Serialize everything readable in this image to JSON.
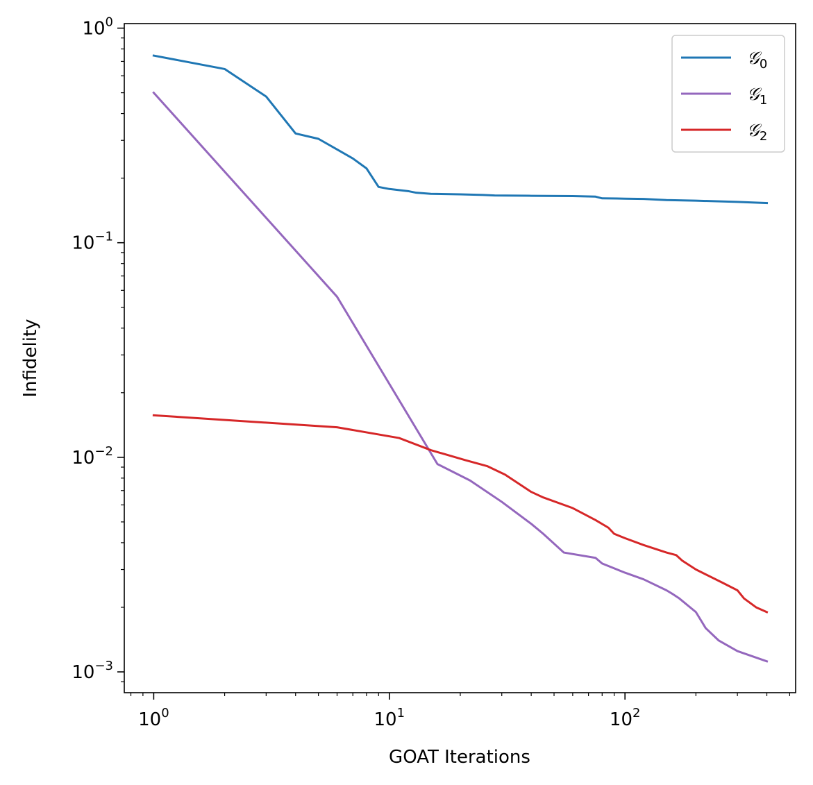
{
  "chart_data": {
    "type": "line",
    "title": "",
    "xlabel": "GOAT Iterations",
    "ylabel": "Infidelity",
    "xscale": "log",
    "yscale": "log",
    "xlim": [
      0.75,
      530
    ],
    "ylim": [
      0.0008,
      1.05
    ],
    "grid": false,
    "legend_position": "top-right",
    "x_major_ticks": [
      {
        "value": 1,
        "base": "10",
        "exp": "0"
      },
      {
        "value": 10,
        "base": "10",
        "exp": "1"
      },
      {
        "value": 100,
        "base": "10",
        "exp": "2"
      }
    ],
    "y_major_ticks": [
      {
        "value": 1,
        "base": "10",
        "exp": "0"
      },
      {
        "value": 0.1,
        "base": "10",
        "exp": "−1"
      },
      {
        "value": 0.01,
        "base": "10",
        "exp": "−2"
      },
      {
        "value": 0.001,
        "base": "10",
        "exp": "−3"
      }
    ],
    "series": [
      {
        "name": "G0",
        "label_main": "𝒢",
        "label_sub": "0",
        "color": "#1f77b4",
        "x": [
          1,
          2,
          3,
          4,
          5,
          6,
          7,
          8,
          9,
          10,
          12,
          13,
          15,
          20,
          25,
          28,
          40,
          60,
          75,
          80,
          100,
          120,
          150,
          200,
          300,
          400
        ],
        "y": [
          0.745,
          0.645,
          0.48,
          0.323,
          0.305,
          0.272,
          0.247,
          0.222,
          0.182,
          0.178,
          0.174,
          0.171,
          0.169,
          0.168,
          0.167,
          0.166,
          0.1655,
          0.165,
          0.164,
          0.161,
          0.1605,
          0.16,
          0.158,
          0.157,
          0.155,
          0.153
        ]
      },
      {
        "name": "G1",
        "label_main": "𝒢",
        "label_sub": "1",
        "color": "#9467bd",
        "x": [
          1,
          6,
          16,
          22,
          30,
          40,
          45,
          55,
          75,
          80,
          100,
          120,
          150,
          160,
          170,
          200,
          220,
          250,
          300,
          400
        ],
        "y": [
          0.5,
          0.056,
          0.0093,
          0.0078,
          0.0062,
          0.0049,
          0.0044,
          0.0036,
          0.0034,
          0.0032,
          0.0029,
          0.0027,
          0.0024,
          0.0023,
          0.0022,
          0.0019,
          0.0016,
          0.0014,
          0.00125,
          0.00112
        ]
      },
      {
        "name": "G2",
        "label_main": "𝒢",
        "label_sub": "2",
        "color": "#d62728",
        "x": [
          1,
          6,
          11,
          15,
          21,
          26,
          31,
          40,
          45,
          60,
          75,
          85,
          90,
          100,
          120,
          150,
          165,
          175,
          200,
          260,
          300,
          320,
          360,
          400
        ],
        "y": [
          0.0157,
          0.0138,
          0.0123,
          0.0108,
          0.0097,
          0.0091,
          0.0083,
          0.0069,
          0.0065,
          0.0058,
          0.0051,
          0.0047,
          0.0044,
          0.0042,
          0.0039,
          0.0036,
          0.0035,
          0.0033,
          0.003,
          0.0026,
          0.0024,
          0.0022,
          0.002,
          0.0019
        ]
      }
    ]
  }
}
